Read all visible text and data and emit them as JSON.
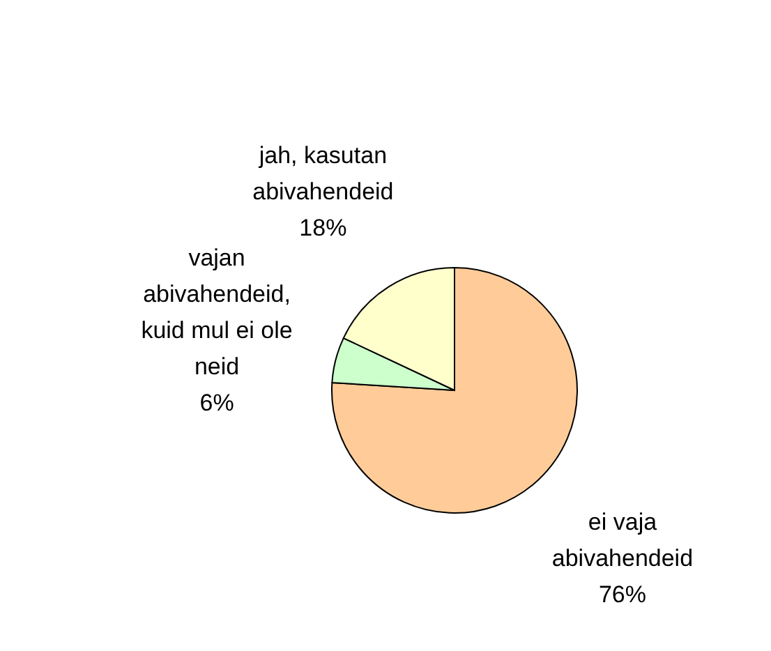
{
  "chart_data": {
    "type": "pie",
    "categories": [
      "ei vaja abivahendeid",
      "vajan abivahendeid, kuid mul ei ole neid",
      "jah, kasutan abivahendeid"
    ],
    "values": [
      76,
      6,
      18
    ],
    "colors": [
      "#ffcc99",
      "#ccffcc",
      "#ffffcc"
    ],
    "value_labels": [
      "76%",
      "6%",
      "18%"
    ]
  }
}
